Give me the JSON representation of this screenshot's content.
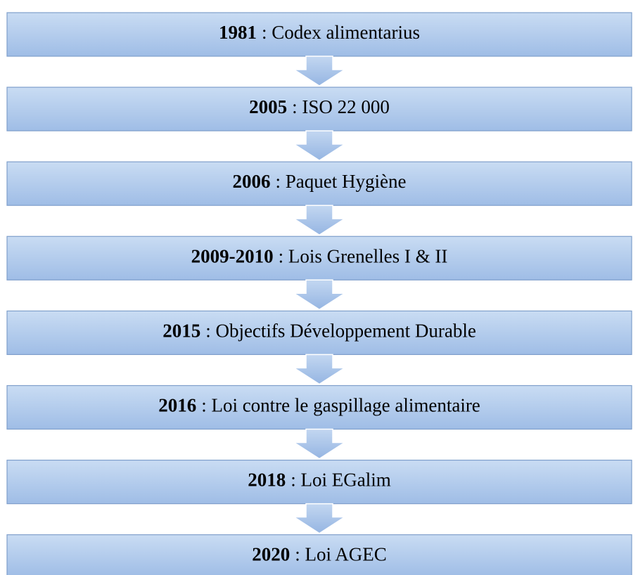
{
  "nodes": [
    {
      "year": "1981",
      "label": ": Codex alimentarius"
    },
    {
      "year": "2005",
      "label": ": ISO 22 000"
    },
    {
      "year": "2006",
      "label": ": Paquet Hygiène"
    },
    {
      "year": "2009-2010",
      "label": ": Lois Grenelles I & II"
    },
    {
      "year": "2015",
      "label": ": Objectifs Développement Durable"
    },
    {
      "year": "2016",
      "label": ": Loi contre le gaspillage alimentaire"
    },
    {
      "year": "2018",
      "label": ": Loi EGalim"
    },
    {
      "year": "2020",
      "label": ": Loi AGEC"
    }
  ]
}
